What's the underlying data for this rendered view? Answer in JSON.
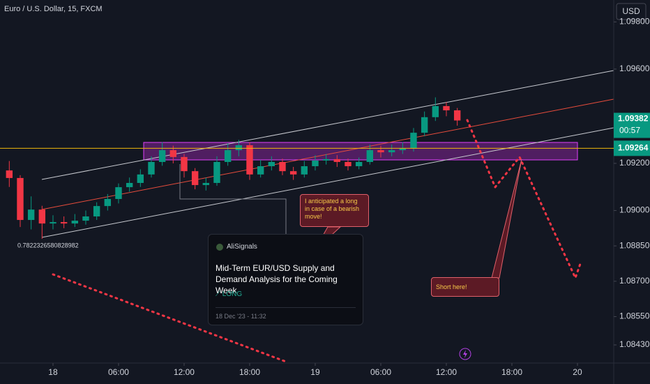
{
  "chart_data": {
    "type": "candlestick",
    "title": "Euro / U.S. Dollar, 15, FXCM",
    "currency": "USD",
    "x": [
      -4,
      -3,
      -2,
      -1,
      0,
      1,
      2,
      3,
      4,
      5,
      6,
      7,
      8,
      9,
      10,
      11,
      12,
      13,
      14,
      15,
      16,
      17,
      18,
      19,
      20,
      21,
      22,
      23,
      24,
      25,
      26,
      27,
      28,
      29,
      30,
      31,
      32,
      33,
      34,
      35,
      36,
      37
    ],
    "open": [
      1.0917,
      1.09138,
      1.0896,
      1.09004,
      1.08945,
      1.08951,
      1.08945,
      1.08957,
      1.08975,
      1.09019,
      1.09049,
      1.09099,
      1.09117,
      1.09153,
      1.09206,
      1.09256,
      1.09227,
      1.09167,
      1.09108,
      1.09117,
      1.09206,
      1.09256,
      1.09277,
      1.09153,
      1.09188,
      1.09206,
      1.09167,
      1.09153,
      1.09188,
      1.09212,
      1.09218,
      1.09206,
      1.09188,
      1.09206,
      1.09256,
      1.09247,
      1.09256,
      1.09265,
      1.0933,
      1.09396,
      1.09443,
      1.09425
    ],
    "high": [
      1.0921,
      1.0915,
      1.0906,
      1.0902,
      1.0898,
      1.08975,
      1.08985,
      1.09,
      1.09035,
      1.0907,
      1.09115,
      1.0914,
      1.09175,
      1.0923,
      1.0929,
      1.09275,
      1.0924,
      1.0918,
      1.0914,
      1.0923,
      1.09285,
      1.093,
      1.0929,
      1.09215,
      1.0923,
      1.0922,
      1.09185,
      1.0921,
      1.09235,
      1.0924,
      1.09235,
      1.0922,
      1.09225,
      1.0928,
      1.09275,
      1.0928,
      1.0929,
      1.0935,
      1.0942,
      1.0948,
      1.0946,
      1.09435
    ],
    "low": [
      1.091,
      1.0893,
      1.0892,
      1.0888,
      1.0892,
      1.08925,
      1.0893,
      1.0894,
      1.0896,
      1.09,
      1.0903,
      1.0908,
      1.091,
      1.0914,
      1.0919,
      1.092,
      1.0914,
      1.0909,
      1.09085,
      1.09105,
      1.0919,
      1.0923,
      1.0913,
      1.0914,
      1.0917,
      1.0915,
      1.0913,
      1.0914,
      1.0917,
      1.09195,
      1.09185,
      1.0917,
      1.09175,
      1.09195,
      1.09225,
      1.0923,
      1.0924,
      1.0925,
      1.09315,
      1.0938,
      1.094,
      1.0936
    ],
    "close": [
      1.09138,
      1.0896,
      1.09004,
      1.08945,
      1.08951,
      1.08945,
      1.08957,
      1.08975,
      1.09019,
      1.09049,
      1.09099,
      1.09117,
      1.09153,
      1.09206,
      1.09256,
      1.09227,
      1.09167,
      1.09108,
      1.09117,
      1.09206,
      1.09256,
      1.09277,
      1.09153,
      1.09188,
      1.09206,
      1.09167,
      1.09153,
      1.09188,
      1.09212,
      1.09218,
      1.09206,
      1.09188,
      1.09206,
      1.09256,
      1.09247,
      1.09256,
      1.09265,
      1.0933,
      1.09396,
      1.09443,
      1.09425,
      1.09382
    ],
    "up_color": "#089981",
    "down_color": "#f23645",
    "xlim": [
      -4.85,
      51.32
    ],
    "xticks": [
      {
        "value": 0,
        "label": "18"
      },
      {
        "value": 6,
        "label": "06:00"
      },
      {
        "value": 12,
        "label": "12:00"
      },
      {
        "value": 18,
        "label": "18:00"
      },
      {
        "value": 24,
        "label": "19"
      },
      {
        "value": 30,
        "label": "06:00"
      },
      {
        "value": 36,
        "label": "12:00"
      },
      {
        "value": 42,
        "label": "18:00"
      },
      {
        "value": 48,
        "label": "20"
      }
    ],
    "ylim": [
      1.08353,
      1.09893
    ],
    "yticks": [
      {
        "value": 1.098,
        "label": "1.09800"
      },
      {
        "value": 1.096,
        "label": "1.09600"
      },
      {
        "value": 1.092,
        "label": "1.09200"
      },
      {
        "value": 1.09,
        "label": "1.09000"
      },
      {
        "value": 1.0885,
        "label": "1.08850"
      },
      {
        "value": 1.087,
        "label": "1.08700"
      },
      {
        "value": 1.0855,
        "label": "1.08550"
      },
      {
        "value": 1.0843,
        "label": "1.08430"
      }
    ],
    "last_price": 1.09382,
    "countdown": "00:57",
    "level_price": 1.09264,
    "low_label": "0.7822326580828982"
  },
  "annotations": {
    "long_note": "I anticipated a long in case of a bearish move!",
    "short_note": "Short here!"
  },
  "idea_card": {
    "author": "AliSignals",
    "title": "Mid-Term EUR/USD Supply and Demand Analysis for the Coming Week",
    "direction": "LONG",
    "date": "18 Dec '23 - 11:32"
  }
}
